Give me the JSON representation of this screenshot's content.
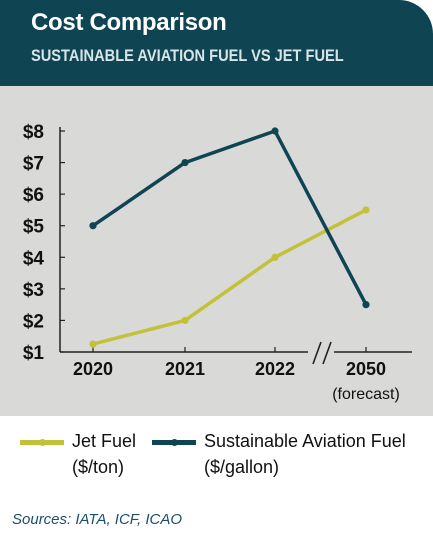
{
  "header": {
    "title": "Cost Comparison",
    "subtitle": "SUSTAINABLE AVIATION FUEL VS JET FUEL"
  },
  "chart_data": {
    "type": "line",
    "categories": [
      "2020",
      "2021",
      "2022",
      "2050"
    ],
    "category_sublabels": [
      "",
      "",
      "",
      "(forecast)"
    ],
    "axis_break_between": [
      "2022",
      "2050"
    ],
    "y_ticks": [
      "$1",
      "$2",
      "$3",
      "$4",
      "$5",
      "$6",
      "$7",
      "$8"
    ],
    "ylim": [
      1,
      8
    ],
    "grid": false,
    "legend_position": "bottom",
    "series": [
      {
        "name": "Jet Fuel",
        "unit": "($/ton)",
        "color": "#c2c23a",
        "values": [
          1.25,
          2.0,
          4.0,
          5.5
        ]
      },
      {
        "name": "Sustainable Aviation Fuel",
        "unit": "($/gallon)",
        "color": "#0f4553",
        "values": [
          5.0,
          7.0,
          8.0,
          2.5
        ]
      }
    ]
  },
  "sources": "Sources: IATA, ICF, ICAO"
}
